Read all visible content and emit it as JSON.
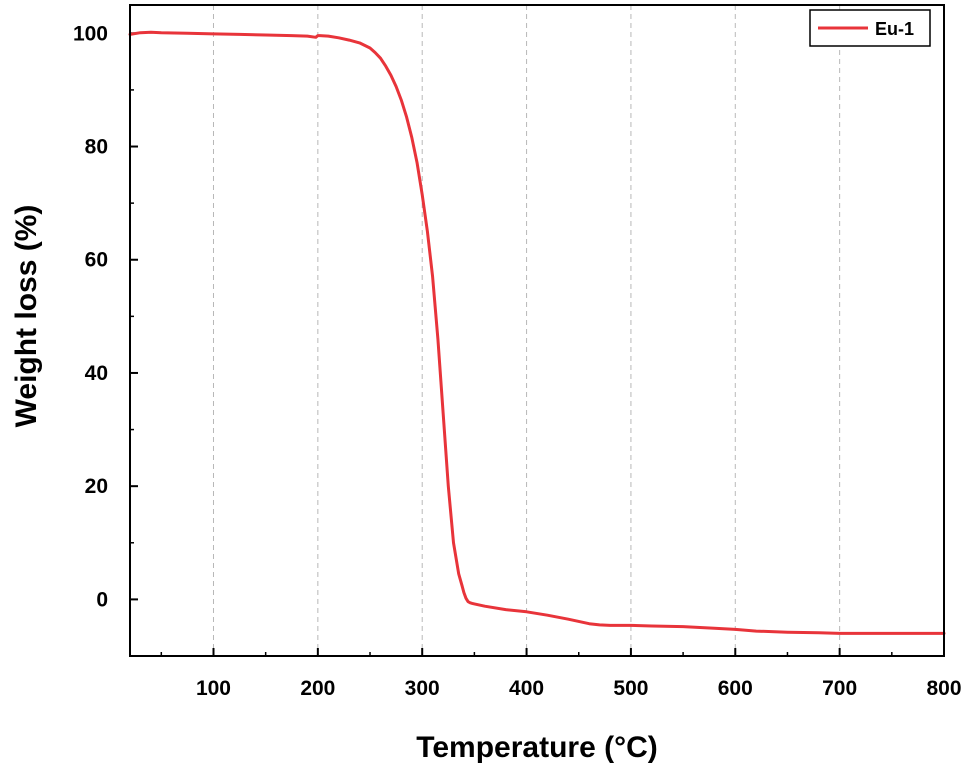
{
  "chart_data": {
    "type": "line",
    "title": "",
    "xlabel": "Temperature (°C)",
    "ylabel": "Weight loss (%)",
    "xlim": [
      20,
      800
    ],
    "ylim": [
      -10,
      105
    ],
    "xticks": [
      100,
      200,
      300,
      400,
      500,
      600,
      700,
      800
    ],
    "yticks": [
      0,
      20,
      40,
      60,
      80,
      100
    ],
    "grid": "vertical dashed lines at x ticks",
    "legend": {
      "position": "top-right",
      "entries": [
        "Eu-1"
      ]
    },
    "colors": {
      "series": "#e8343a",
      "grid": "#b8b8b8",
      "axis": "#000000"
    },
    "series": [
      {
        "name": "Eu-1",
        "x": [
          20,
          30,
          40,
          50,
          75,
          100,
          125,
          150,
          175,
          190,
          198,
          200,
          202,
          210,
          220,
          230,
          240,
          250,
          255,
          260,
          265,
          270,
          275,
          280,
          285,
          290,
          295,
          300,
          305,
          310,
          315,
          320,
          325,
          330,
          335,
          338,
          340,
          342,
          344,
          346,
          348,
          350,
          360,
          380,
          400,
          420,
          440,
          460,
          470,
          480,
          500,
          520,
          550,
          580,
          600,
          620,
          650,
          680,
          700,
          750,
          800
        ],
        "y": [
          99.8,
          100.1,
          100.2,
          100.1,
          100.0,
          99.9,
          99.8,
          99.7,
          99.6,
          99.5,
          99.3,
          99.6,
          99.6,
          99.5,
          99.2,
          98.8,
          98.3,
          97.4,
          96.6,
          95.6,
          94.2,
          92.6,
          90.6,
          88.2,
          85.2,
          81.6,
          77.2,
          71.5,
          65.0,
          57.0,
          46.0,
          33.0,
          20.0,
          10.0,
          4.5,
          2.5,
          1.2,
          0.2,
          -0.4,
          -0.6,
          -0.7,
          -0.8,
          -1.2,
          -1.8,
          -2.2,
          -2.8,
          -3.5,
          -4.3,
          -4.5,
          -4.6,
          -4.6,
          -4.7,
          -4.8,
          -5.1,
          -5.3,
          -5.6,
          -5.8,
          -5.9,
          -6.0,
          -6.0,
          -6.0
        ]
      }
    ]
  }
}
